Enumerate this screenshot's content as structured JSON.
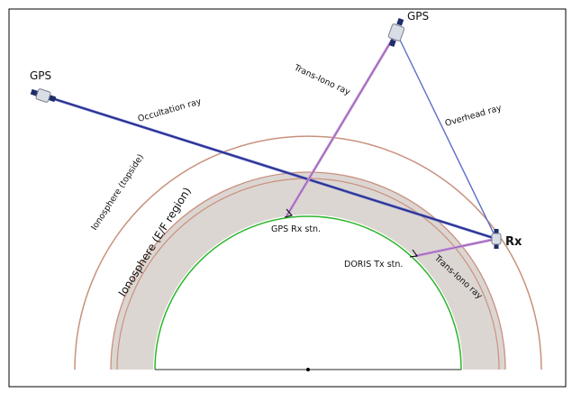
{
  "labels": {
    "gps_left": "GPS",
    "gps_top": "GPS",
    "occultation_ray": "Occultation ray",
    "trans_iono_ray_upper": "Trans-Iono ray",
    "overhead_ray": "Overhead ray",
    "ionosphere_topside": "Ionosphere (topside)",
    "ionosphere_ef": "Ionosphere (E/F region)",
    "gps_rx_station": "GPS Rx stn.",
    "doris_tx_station": "DORIS Tx stn.",
    "trans_iono_ray_lower": "Trans-Iono ray",
    "rx": "Rx"
  },
  "colors": {
    "border": "#000000",
    "topside_arc": "#c9917e",
    "ef_band_fill": "#dcd6d3",
    "ef_band_line": "#c9917e",
    "earth_surface": "#2db52d",
    "occultation_ray": "#2a2a8c",
    "trans_iono_ray": "#c69ad8",
    "overhead_ray": "#5c6fc4",
    "satellite_body": "#d8dde6",
    "satellite_panel": "#1f2d6b"
  },
  "icons": {
    "satellite": "satellite-icon",
    "receiver": "receiver-icon"
  }
}
